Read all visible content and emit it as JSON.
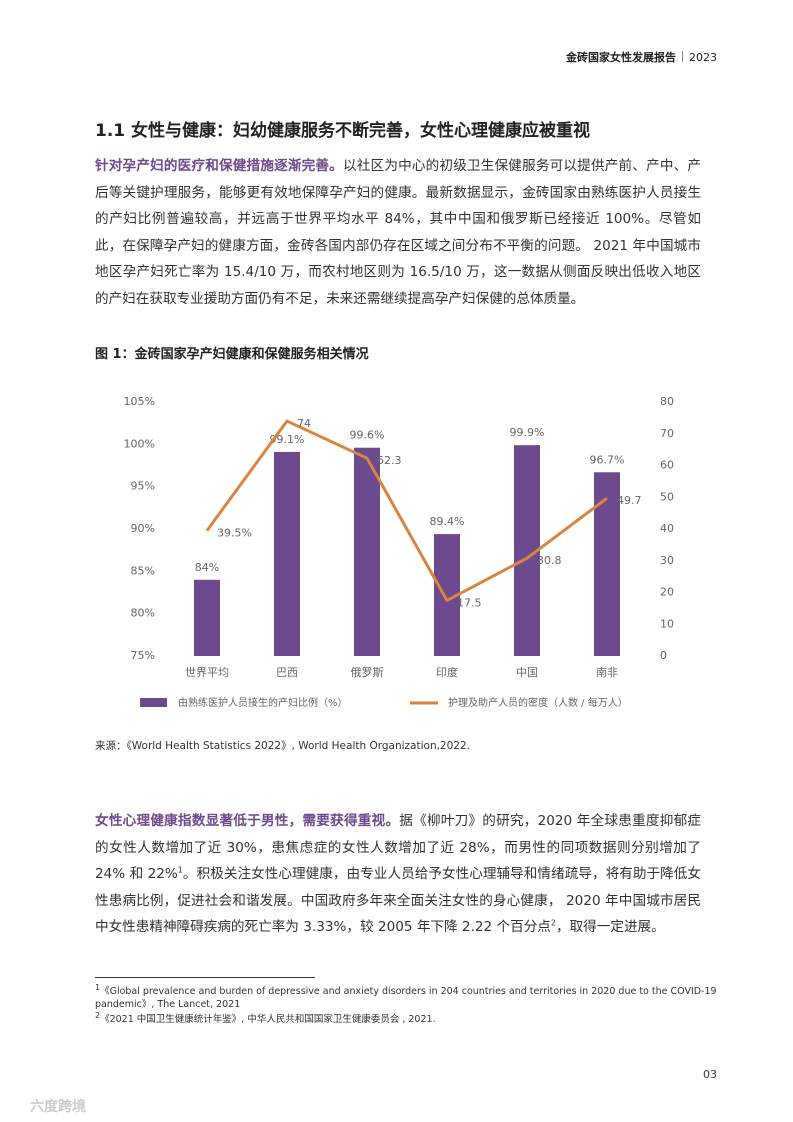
{
  "header": {
    "title": "金砖国家女性发展报告",
    "year": "2023"
  },
  "section_title": "1.1 女性与健康：妇幼健康服务不断完善，女性心理健康应被重视",
  "paragraph1": {
    "lead": "针对孕产妇的医疗和保健措施逐渐完善。",
    "text": "以社区为中心的初级卫生保健服务可以提供产前、产中、产后等关键护理服务，能够更有效地保障孕产妇的健康。最新数据显示，金砖国家由熟练医护人员接生的产妇比例普遍较高，并远高于世界平均水平 84%，其中中国和俄罗斯已经接近 100%。尽管如此，在保障孕产妇的健康方面，金砖各国内部仍存在区域之间分布不平衡的问题。 2021 年中国城市地区孕产妇死亡率为 15.4/10 万，而农村地区则为 16.5/10 万，这一数据从侧面反映出低收入地区的产妇在获取专业援助方面仍有不足，未来还需继续提高孕产妇保健的总体质量。"
  },
  "figure": {
    "title": "图 1：金砖国家孕产妇健康和保健服务相关情况",
    "source": "来源：《World Health Statistics 2022》, World Health Organization,2022."
  },
  "chart_data": {
    "type": "combo",
    "categories": [
      "世界平均",
      "巴西",
      "俄罗斯",
      "印度",
      "中国",
      "南非"
    ],
    "series": [
      {
        "name": "由熟练医护人员接生的产妇比例（%）",
        "type": "bar",
        "color": "#6d4a8d",
        "values": [
          84,
          99.1,
          99.6,
          89.4,
          99.9,
          96.7
        ],
        "value_labels": [
          "84%",
          "99.1%",
          "99.6%",
          "89.4%",
          "99.9%",
          "96.7%"
        ]
      },
      {
        "name": "护理及助产人员的密度（人数 / 每万人）",
        "type": "line",
        "axis": "y2",
        "color": "#d98540",
        "values": [
          39.5,
          74,
          62.3,
          17.5,
          30.8,
          49.7
        ],
        "value_labels": [
          "39.5%",
          "74",
          "62.3",
          "17.5",
          "30.8",
          "49.7"
        ]
      }
    ],
    "ylim": [
      75,
      105
    ],
    "yticks": [
      {
        "value": 75,
        "label": "75%"
      },
      {
        "value": 80,
        "label": "80%"
      },
      {
        "value": 85,
        "label": "85%"
      },
      {
        "value": 90,
        "label": "90%"
      },
      {
        "value": 95,
        "label": "95%"
      },
      {
        "value": 100,
        "label": "100%"
      },
      {
        "value": 105,
        "label": "105%"
      }
    ],
    "y2lim": [
      0,
      80
    ],
    "y2ticks": [
      0,
      10,
      20,
      30,
      40,
      50,
      60,
      70,
      80
    ],
    "grid": false
  },
  "paragraph2": {
    "lead": "女性心理健康指数显著低于男性，需要获得重视。",
    "text1": "据《柳叶刀》的研究，2020 年全球患重度抑郁症的女性人数增加了近 30%，患焦虑症的女性人数增加了近 28%，而男性的同项数据则分别增加了 24% 和 22%",
    "ref1": "1",
    "text2": "。积极关注女性心理健康，由专业人员给予女性心理辅导和情绪疏导，将有助于降低女性患病比例，促进社会和谐发展。中国政府多年来全面关注女性的身心健康， 2020 年中国城市居民中女性患精神障碍疾病的死亡率为 3.33%，较 2005 年下降 2.22 个百分点",
    "ref2": "2",
    "text3": "，取得一定进展。"
  },
  "footnotes": [
    {
      "mark": "1",
      "text": "《Global prevalence and burden of depressive and anxiety disorders in 204 countries and territories in 2020 due to the COVID-19 pandemic》, The Lancet, 2021"
    },
    {
      "mark": "2",
      "text": "《2021 中国卫生健康统计年鉴》, 中华人民共和国国家卫生健康委员会 , 2021."
    }
  ],
  "page_number": "03",
  "watermark": "六度跨境"
}
